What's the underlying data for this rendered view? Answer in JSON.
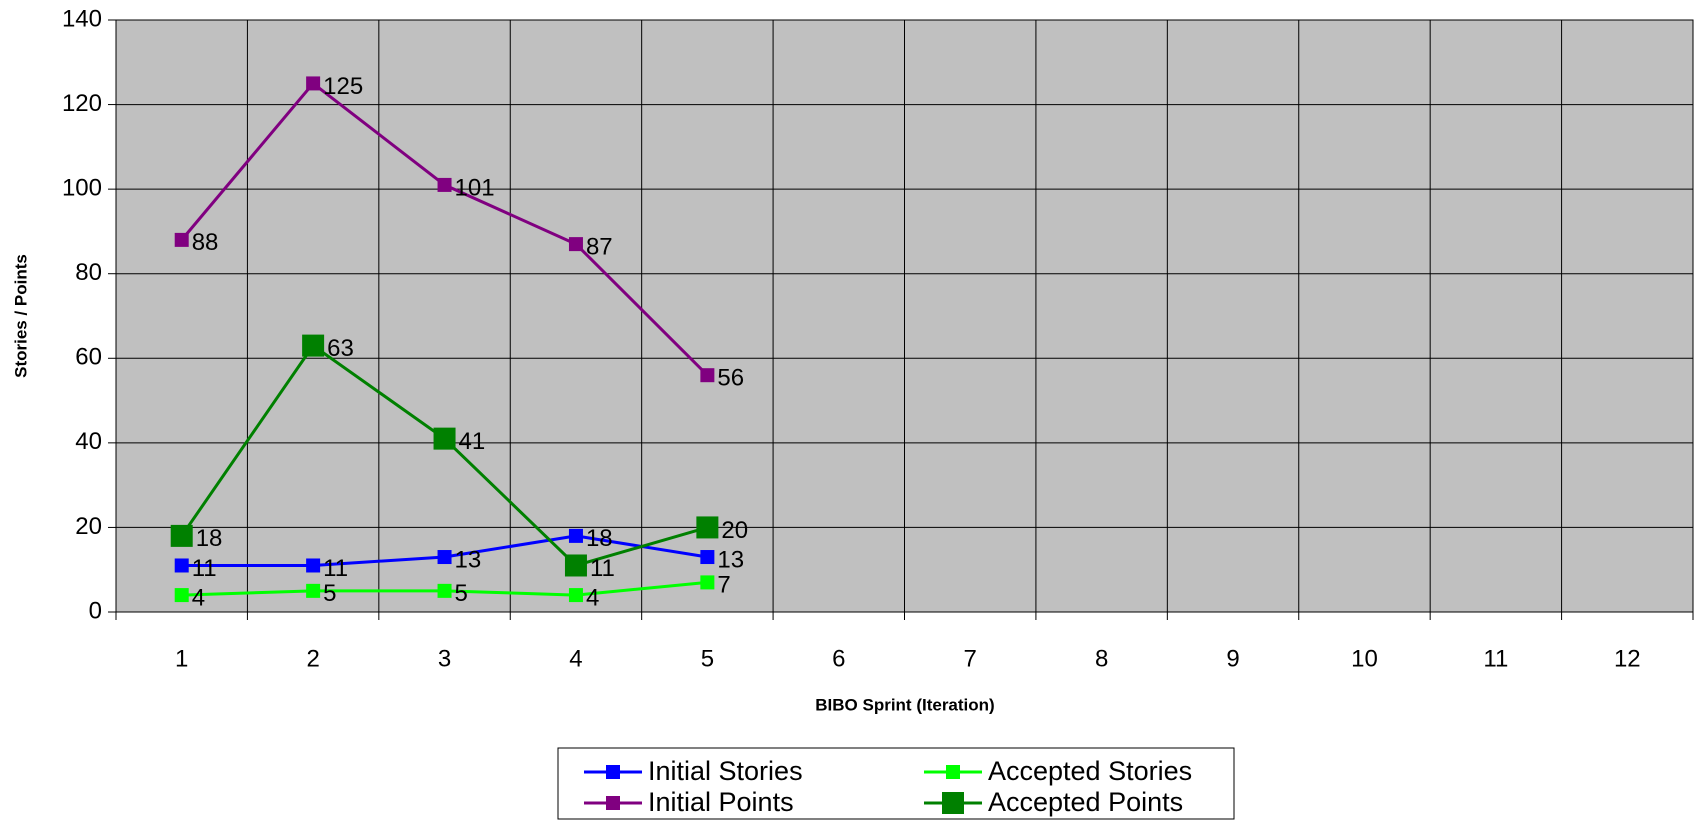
{
  "chart_data": {
    "type": "line",
    "x_label": "BIBO Sprint (Iteration)",
    "y_label": "Stories / Points",
    "categories": [
      1,
      2,
      3,
      4,
      5,
      6,
      7,
      8,
      9,
      10,
      11,
      12
    ],
    "ylim": [
      0,
      140
    ],
    "yticks": [
      0,
      20,
      40,
      60,
      80,
      100,
      120,
      140
    ],
    "grid": true,
    "plot_background": "#c0c0c0",
    "series": [
      {
        "name": "Initial Stories",
        "color": "#0000ff",
        "marker_size": 14,
        "values": [
          11,
          11,
          13,
          18,
          13,
          null,
          null,
          null,
          null,
          null,
          null,
          null
        ]
      },
      {
        "name": "Accepted Stories",
        "color": "#00ff00",
        "marker_size": 14,
        "values": [
          4,
          5,
          5,
          4,
          7,
          null,
          null,
          null,
          null,
          null,
          null,
          null
        ]
      },
      {
        "name": "Initial Points",
        "color": "#800080",
        "marker_size": 14,
        "values": [
          88,
          125,
          101,
          87,
          56,
          null,
          null,
          null,
          null,
          null,
          null,
          null
        ]
      },
      {
        "name": "Accepted Points",
        "color": "#008000",
        "marker_size": 22,
        "values": [
          18,
          63,
          41,
          11,
          20,
          null,
          null,
          null,
          null,
          null,
          null,
          null
        ]
      }
    ]
  }
}
